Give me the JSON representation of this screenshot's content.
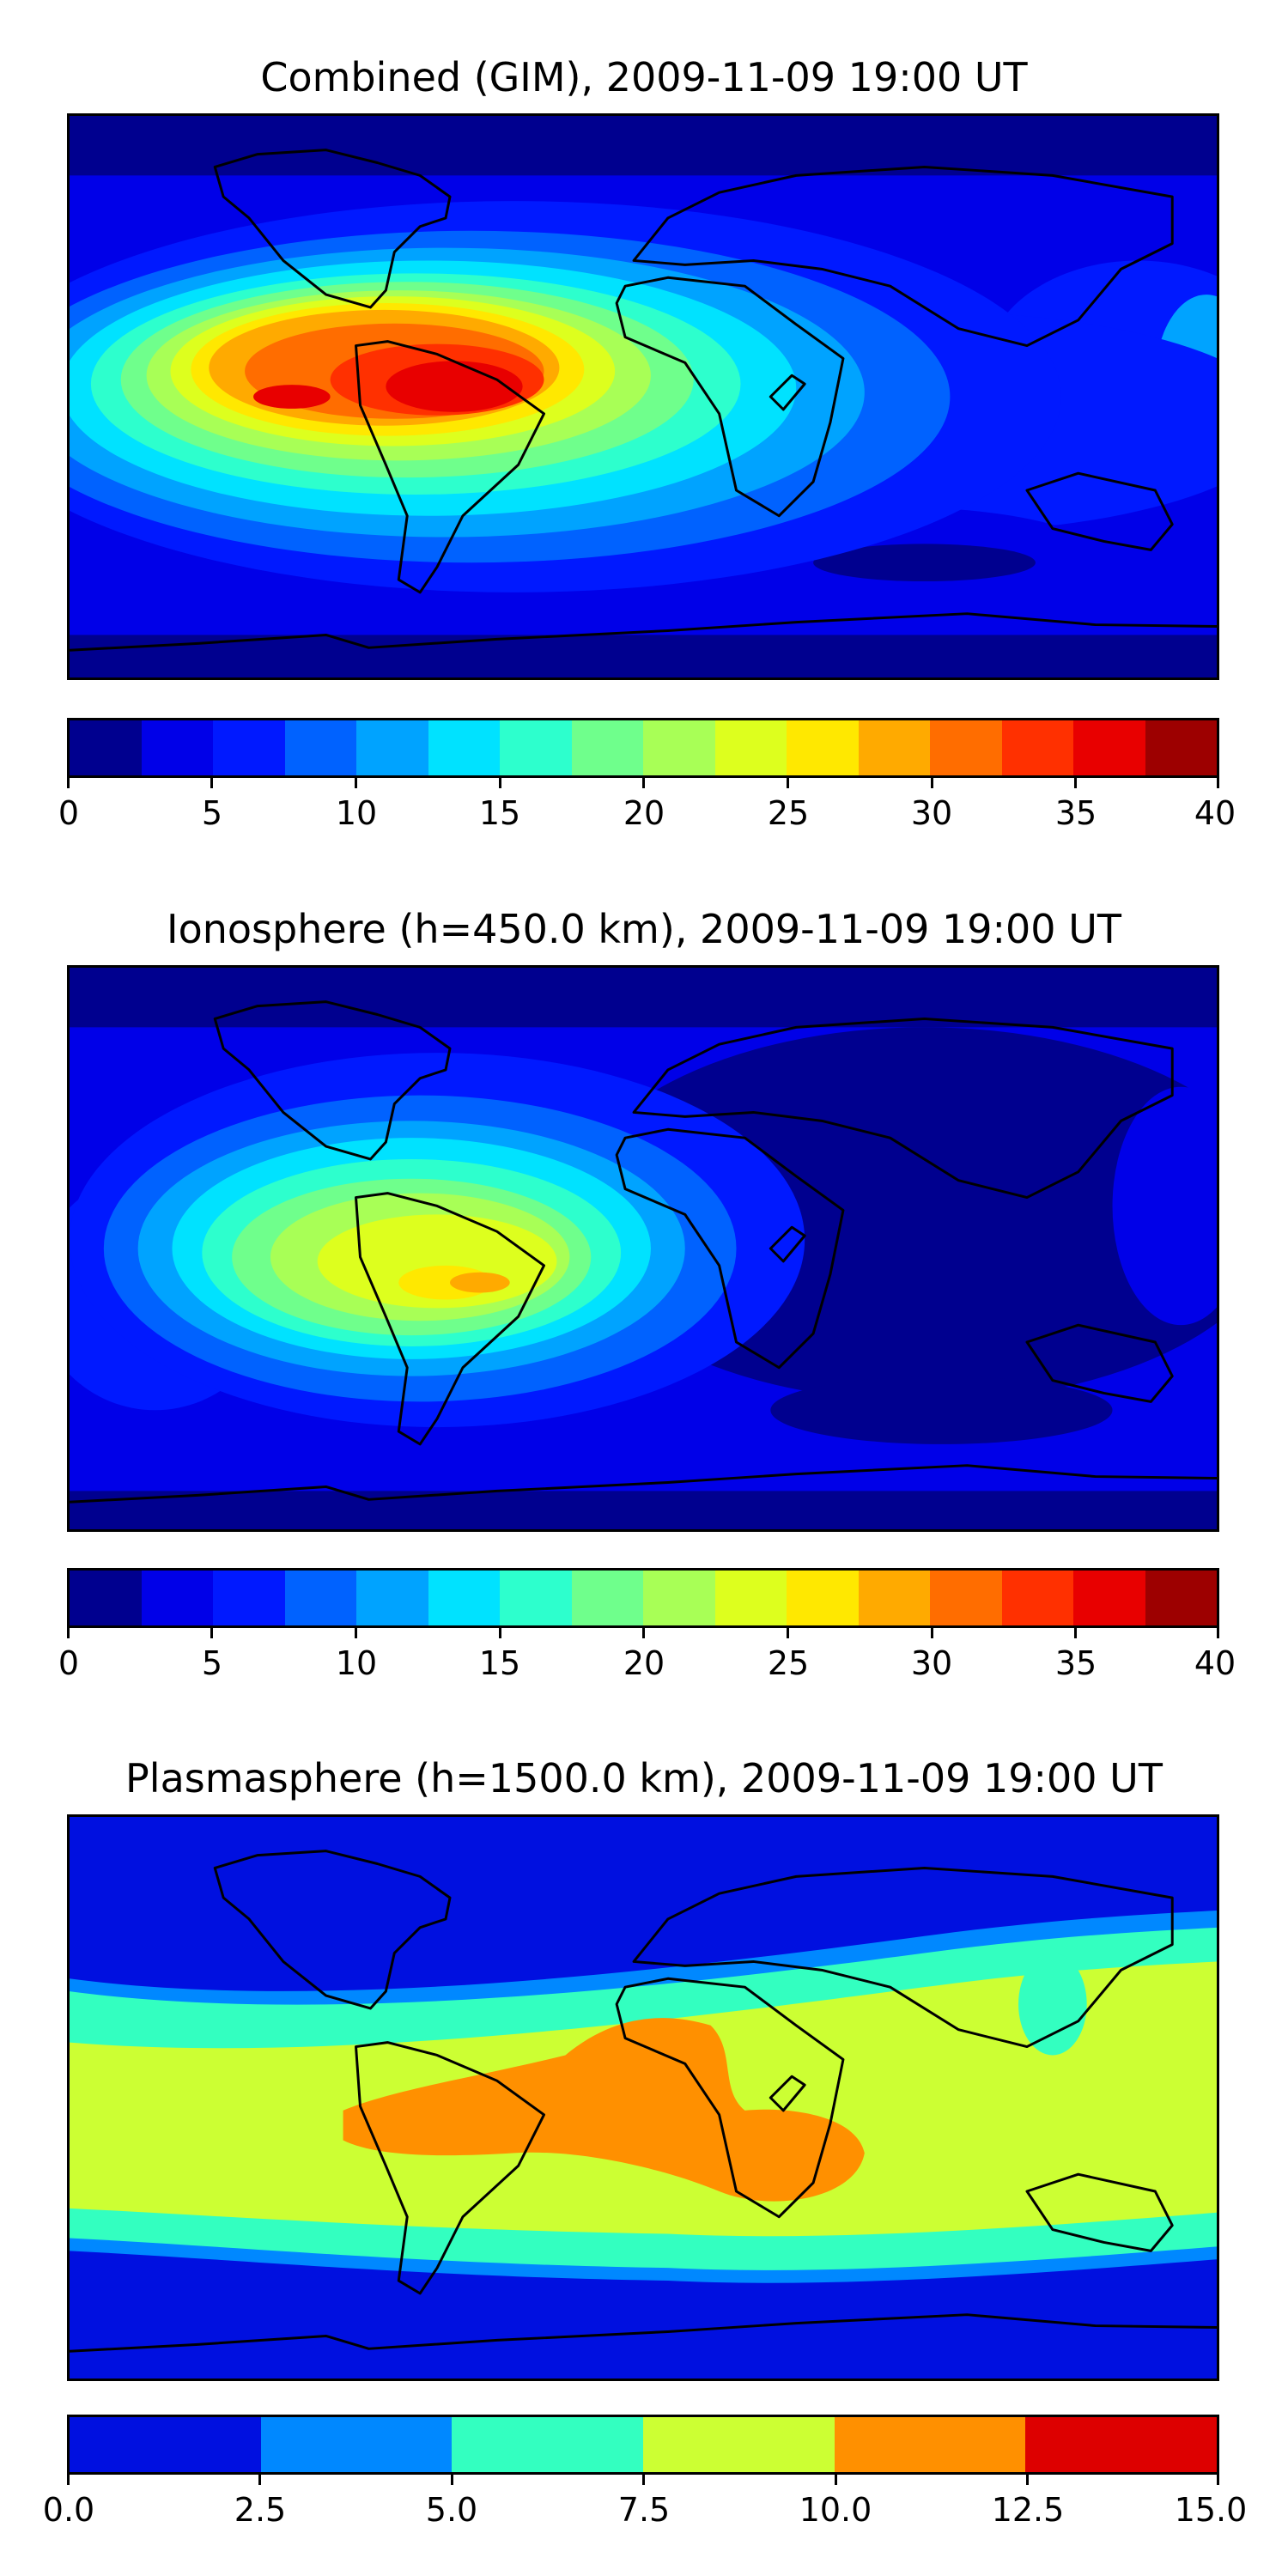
{
  "panels": [
    {
      "title": "Combined (GIM), 2009-11-09 19:00 UT",
      "colorbar": {
        "ticks": [
          "0",
          "5",
          "10",
          "15",
          "20",
          "25",
          "30",
          "35",
          "40"
        ],
        "colors": [
          "#00008f",
          "#0000e8",
          "#0019ff",
          "#0062ff",
          "#00a3ff",
          "#00e2ff",
          "#2dffcd",
          "#6fff8c",
          "#a8ff56",
          "#ddff1e",
          "#ffe800",
          "#ffaa00",
          "#ff6d00",
          "#ff3000",
          "#e80000",
          "#9d0000"
        ]
      }
    },
    {
      "title": "Ionosphere  (h=450.0 km), 2009-11-09 19:00 UT",
      "colorbar": {
        "ticks": [
          "0",
          "5",
          "10",
          "15",
          "20",
          "25",
          "30",
          "35",
          "40"
        ],
        "colors": [
          "#00008f",
          "#0000e8",
          "#0019ff",
          "#0062ff",
          "#00a3ff",
          "#00e2ff",
          "#2dffcd",
          "#6fff8c",
          "#a8ff56",
          "#ddff1e",
          "#ffe800",
          "#ffaa00",
          "#ff6d00",
          "#ff3000",
          "#e80000",
          "#9d0000"
        ]
      }
    },
    {
      "title": "Plasmasphere (h=1500.0 km), 2009-11-09 19:00 UT",
      "colorbar": {
        "ticks": [
          "0.0",
          "2.5",
          "5.0",
          "7.5",
          "10.0",
          "12.5",
          "15.0"
        ],
        "colors": [
          "#0010e0",
          "#0088ff",
          "#33ffc0",
          "#ccff33",
          "#ff9000",
          "#dd0000"
        ]
      }
    }
  ]
}
